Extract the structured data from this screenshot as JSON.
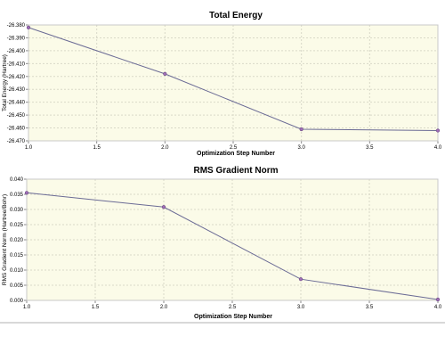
{
  "chart_data": [
    {
      "type": "line",
      "title": "Total Energy",
      "xlabel": "Optimization Step Number",
      "ylabel": "Total Energy (Hartree)",
      "x": [
        1.0,
        2.0,
        3.0,
        4.0
      ],
      "series": [
        {
          "values": [
            -26.382,
            -26.418,
            -26.461,
            -26.462
          ]
        }
      ],
      "xlim": [
        1.0,
        4.0
      ],
      "ylim": [
        -26.47,
        -26.38
      ],
      "xticks": [
        "1.0",
        "1.5",
        "2.0",
        "2.5",
        "3.0",
        "3.5",
        "4.0"
      ],
      "yticks": [
        "-26.380",
        "-26.390",
        "-26.400",
        "-26.410",
        "-26.420",
        "-26.430",
        "-26.440",
        "-26.450",
        "-26.460",
        "-26.470"
      ],
      "grid": true,
      "color": "#6b6b95",
      "marker_color": "#a16fb8"
    },
    {
      "type": "line",
      "title": "RMS Gradient Norm",
      "xlabel": "Optimization Step Number",
      "ylabel": "RMS Gradient Norm (Hartree/Bohr)",
      "x": [
        1.0,
        2.0,
        3.0,
        4.0
      ],
      "series": [
        {
          "values": [
            0.0355,
            0.0308,
            0.007,
            0.0003
          ]
        }
      ],
      "xlim": [
        1.0,
        4.0
      ],
      "ylim": [
        0.0,
        0.04
      ],
      "xticks": [
        "1.0",
        "1.5",
        "2.0",
        "2.5",
        "3.0",
        "3.5",
        "4.0"
      ],
      "yticks": [
        "0.040",
        "0.035",
        "0.030",
        "0.025",
        "0.020",
        "0.015",
        "0.010",
        "0.005",
        "0.000"
      ],
      "grid": true,
      "color": "#6b6b95",
      "marker_color": "#a16fb8"
    }
  ]
}
